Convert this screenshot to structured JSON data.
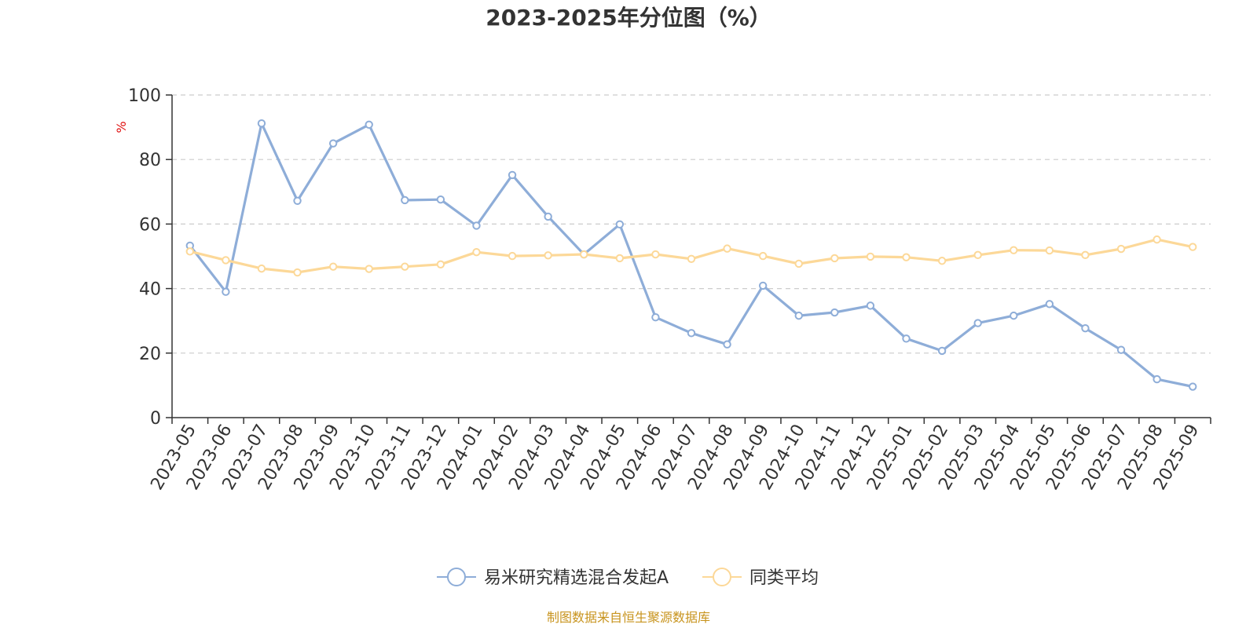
{
  "chart_data": {
    "type": "line",
    "title": "2023-2025年分位图（%）",
    "y_unit": "%",
    "ylim": [
      0,
      100
    ],
    "y_ticks": [
      0,
      20,
      40,
      60,
      80,
      100
    ],
    "grid": true,
    "legend_position": "bottom-center",
    "categories": [
      "2023-05",
      "2023-06",
      "2023-07",
      "2023-08",
      "2023-09",
      "2023-10",
      "2023-11",
      "2023-12",
      "2024-01",
      "2024-02",
      "2024-03",
      "2024-04",
      "2024-05",
      "2024-06",
      "2024-07",
      "2024-08",
      "2024-09",
      "2024-10",
      "2024-11",
      "2024-12",
      "2025-01",
      "2025-02",
      "2025-03",
      "2025-04",
      "2025-05",
      "2025-06",
      "2025-07",
      "2025-08",
      "2025-09"
    ],
    "series": [
      {
        "name": "易米研究精选混合发起A",
        "color": "#8eadd8",
        "values": [
          53.3,
          39.0,
          91.2,
          67.2,
          85.0,
          90.8,
          67.4,
          67.6,
          59.5,
          75.2,
          62.3,
          50.6,
          59.9,
          31.1,
          26.2,
          22.7,
          40.9,
          31.6,
          32.6,
          34.7,
          24.5,
          20.7,
          29.3,
          31.6,
          35.2,
          27.7,
          21.0,
          11.9,
          9.6
        ]
      },
      {
        "name": "同类平均",
        "color": "#fcd898",
        "values": [
          51.5,
          48.8,
          46.2,
          45.0,
          46.8,
          46.1,
          46.8,
          47.5,
          51.3,
          50.1,
          50.3,
          50.6,
          49.4,
          50.6,
          49.2,
          52.4,
          50.1,
          47.7,
          49.4,
          49.9,
          49.7,
          48.6,
          50.4,
          51.9,
          51.8,
          50.4,
          52.3,
          55.2,
          52.9
        ]
      }
    ]
  },
  "source_note": "制图数据来自恒生聚源数据库"
}
